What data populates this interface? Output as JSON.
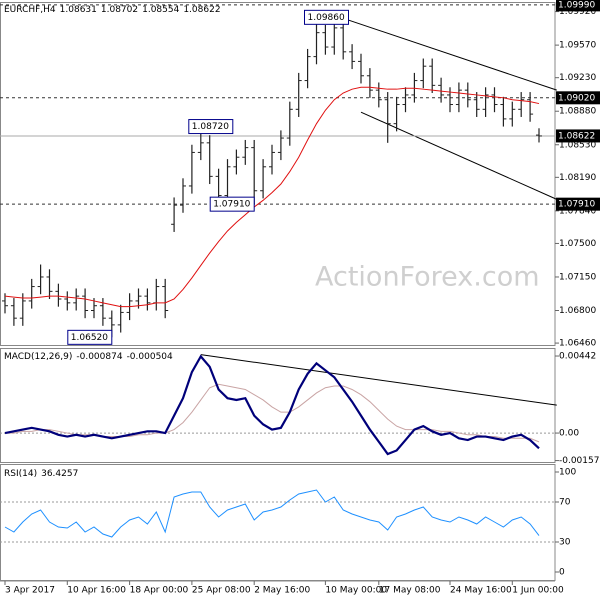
{
  "chart_data": [
    {
      "type": "ohlc",
      "title": "EURCHF,H4",
      "categories": [
        "3 Apr 2017",
        null,
        null,
        null,
        null,
        null,
        null,
        "10 Apr 16:00",
        null,
        null,
        null,
        null,
        null,
        null,
        "18 Apr 00:00",
        null,
        null,
        null,
        null,
        null,
        null,
        "25 Apr 08:00",
        null,
        null,
        null,
        null,
        null,
        null,
        "2 May 16:00",
        null,
        null,
        null,
        null,
        null,
        null,
        null,
        "10 May 00:00",
        null,
        null,
        null,
        null,
        null,
        "17 May 08:00",
        null,
        null,
        null,
        null,
        null,
        null,
        null,
        "24 May 16:00",
        null,
        null,
        null,
        null,
        null,
        null,
        "1 Jun 00:00",
        null,
        null,
        null
      ],
      "open": [
        1.069,
        1.0685,
        1.0672,
        1.069,
        1.0705,
        1.0715,
        1.07,
        1.0692,
        1.0688,
        1.0695,
        1.068,
        1.0685,
        1.0672,
        1.0665,
        1.0678,
        1.069,
        1.0695,
        1.0688,
        1.0705,
        1.077,
        1.079,
        1.081,
        1.0845,
        1.0855,
        1.082,
        1.08,
        1.083,
        1.084,
        1.085,
        1.0805,
        1.083,
        1.0845,
        1.086,
        1.089,
        1.092,
        1.0945,
        1.097,
        1.0955,
        1.0975,
        1.095,
        1.094,
        1.0925,
        1.091,
        1.09,
        1.0875,
        1.0895,
        1.0905,
        1.092,
        1.0935,
        1.0915,
        1.0905,
        1.0895,
        1.091,
        1.09,
        1.089,
        1.0905,
        1.0895,
        1.088,
        1.089,
        1.09,
        1.08631
      ],
      "high": [
        1.0698,
        1.0693,
        1.0698,
        1.0713,
        1.0728,
        1.0723,
        1.0708,
        1.07,
        1.0703,
        1.0703,
        1.0693,
        1.0693,
        1.068,
        1.0686,
        1.0698,
        1.0703,
        1.0703,
        1.0713,
        1.0713,
        1.0798,
        1.0818,
        1.0853,
        1.0872,
        1.0863,
        1.0828,
        1.0838,
        1.0848,
        1.0858,
        1.0858,
        1.0838,
        1.0853,
        1.0868,
        1.0898,
        1.0928,
        1.0953,
        1.0986,
        1.0978,
        1.0983,
        1.0983,
        1.0958,
        1.0948,
        1.0933,
        1.0918,
        1.0908,
        1.0903,
        1.0913,
        1.0928,
        1.0943,
        1.0943,
        1.0923,
        1.0913,
        1.0918,
        1.0918,
        1.0908,
        1.0913,
        1.0913,
        1.0903,
        1.0898,
        1.0908,
        1.0908,
        1.08702
      ],
      "low": [
        1.0677,
        1.0664,
        1.0664,
        1.0682,
        1.0697,
        1.0692,
        1.0684,
        1.068,
        1.068,
        1.0672,
        1.0672,
        1.0664,
        1.0652,
        1.0657,
        1.067,
        1.0682,
        1.068,
        1.068,
        1.0672,
        1.0762,
        1.0782,
        1.0802,
        1.0837,
        1.0812,
        1.0792,
        1.0792,
        1.0822,
        1.0832,
        1.0791,
        1.0797,
        1.0822,
        1.0837,
        1.0852,
        1.0882,
        1.0912,
        1.0937,
        1.0947,
        1.0947,
        1.0942,
        1.0932,
        1.0917,
        1.0902,
        1.0892,
        1.0855,
        1.0867,
        1.0887,
        1.0897,
        1.0912,
        1.0907,
        1.0897,
        1.0887,
        1.0887,
        1.0892,
        1.0882,
        1.0882,
        1.0887,
        1.0872,
        1.0872,
        1.0882,
        1.0877,
        1.08554
      ],
      "close": [
        1.0685,
        1.0672,
        1.069,
        1.0705,
        1.0715,
        1.07,
        1.0692,
        1.0688,
        1.0695,
        1.068,
        1.0685,
        1.0672,
        1.0665,
        1.0678,
        1.069,
        1.0695,
        1.0688,
        1.0705,
        1.068,
        1.079,
        1.081,
        1.0845,
        1.0855,
        1.082,
        1.08,
        1.083,
        1.084,
        1.085,
        1.0805,
        1.083,
        1.0845,
        1.086,
        1.089,
        1.092,
        1.0945,
        1.097,
        1.0955,
        1.0975,
        1.095,
        1.094,
        1.0925,
        1.091,
        1.09,
        1.0875,
        1.0895,
        1.0905,
        1.092,
        1.0935,
        1.0915,
        1.0905,
        1.0895,
        1.091,
        1.09,
        1.089,
        1.0905,
        1.0895,
        1.088,
        1.089,
        1.09,
        1.0885,
        1.08622
      ],
      "color": "#222222",
      "moving_average": {
        "color": "#e01010",
        "values": [
          1.0695,
          1.0694,
          1.0693,
          1.0693,
          1.0694,
          1.0695,
          1.0695,
          1.0694,
          1.0693,
          1.0692,
          1.069,
          1.0688,
          1.0686,
          1.0684,
          1.0684,
          1.0685,
          1.0686,
          1.0688,
          1.0688,
          1.0692,
          1.0702,
          1.0714,
          1.0727,
          1.074,
          1.0752,
          1.0763,
          1.0772,
          1.078,
          1.0788,
          1.0795,
          1.0803,
          1.0812,
          1.0825,
          1.084,
          1.0858,
          1.0875,
          1.0889,
          1.09,
          1.0907,
          1.0911,
          1.0913,
          1.0913,
          1.0912,
          1.0911,
          1.0911,
          1.0912,
          1.0912,
          1.0911,
          1.091,
          1.0909,
          1.0908,
          1.0907,
          1.0906,
          1.0905,
          1.0904,
          1.0903,
          1.0902,
          1.09,
          1.0899,
          1.0898,
          1.0896
        ]
      },
      "ylim": [
        1.0644,
        1.1002
      ],
      "yticks": [
        {
          "value": 1.0992,
          "label": "1.09920"
        },
        {
          "value": 1.0957,
          "label": "1.09570"
        },
        {
          "value": 1.0923,
          "label": "1.09230"
        },
        {
          "value": 1.0888,
          "label": "1.08880"
        },
        {
          "value": 1.0853,
          "label": "1.08530"
        },
        {
          "value": 1.0819,
          "label": "1.08190"
        },
        {
          "value": 1.0784,
          "label": "1.07840"
        },
        {
          "value": 1.075,
          "label": "1.07500"
        },
        {
          "value": 1.0715,
          "label": "1.07150"
        },
        {
          "value": 1.068,
          "label": "1.06800"
        },
        {
          "value": 1.0646,
          "label": "1.06460"
        }
      ],
      "levels": [
        {
          "value": 1.0999,
          "label": "1.09990"
        },
        {
          "value": 1.0902,
          "label": "1.09020"
        },
        {
          "value": 1.0791,
          "label": "1.07910"
        }
      ],
      "annotations": [
        {
          "value": 1.0986,
          "label": "1.09860"
        },
        {
          "value": 1.0872,
          "label": "1.08720"
        },
        {
          "value": 1.0791,
          "label": "1.07910"
        },
        {
          "value": 1.0652,
          "label": "1.06520"
        }
      ],
      "trendlines": [
        {
          "x": [
            38,
            62
          ],
          "y": [
            1.0985,
            1.091
          ]
        },
        {
          "x": [
            40,
            62
          ],
          "y": [
            1.0887,
            1.0796
          ]
        }
      ],
      "watermark": "ActionForex.com"
    },
    {
      "type": "macd",
      "title": "MACD(12,26,9)",
      "series": [
        {
          "color": "#00007a",
          "values": [
            0.0,
            0.0001,
            0.0002,
            0.0003,
            0.0002,
            0.0001,
            -0.0001,
            -0.0002,
            -0.0001,
            -0.0002,
            -0.0001,
            -0.0002,
            -0.0003,
            -0.0002,
            -0.0001,
            0.0,
            0.0001,
            0.0001,
            0.0,
            0.001,
            0.002,
            0.0035,
            0.0044,
            0.0038,
            0.0025,
            0.002,
            0.0019,
            0.002,
            0.001,
            0.0005,
            0.0002,
            0.0003,
            0.0012,
            0.0025,
            0.0034,
            0.004,
            0.0036,
            0.0032,
            0.0025,
            0.0018,
            0.001,
            0.0002,
            -0.0005,
            -0.0012,
            -0.001,
            -0.0004,
            0.0002,
            0.0004,
            0.0001,
            -0.0001,
            0.0,
            -0.0003,
            -0.0004,
            -0.0002,
            -0.0002,
            -0.0003,
            -0.0004,
            -0.0002,
            -0.0001,
            -0.0004,
            -0.000874
          ]
        },
        {
          "color": "#c9a4a4",
          "values": [
            0.0,
            0.0,
            0.0001,
            0.0001,
            0.0002,
            0.0002,
            0.0001,
            0.0,
            -0.0001,
            -0.0001,
            -0.0001,
            -0.0002,
            -0.0002,
            -0.0002,
            -0.0002,
            -0.0001,
            -0.0001,
            0.0,
            0.0,
            0.0002,
            0.0006,
            0.0012,
            0.0019,
            0.0026,
            0.0028,
            0.0027,
            0.0026,
            0.0025,
            0.0022,
            0.0019,
            0.0015,
            0.0012,
            0.0012,
            0.0015,
            0.0019,
            0.0023,
            0.0026,
            0.0027,
            0.0027,
            0.0025,
            0.0022,
            0.0018,
            0.0013,
            0.0008,
            0.0004,
            0.0002,
            0.0002,
            0.0002,
            0.0002,
            0.0001,
            0.0001,
            0.0,
            -0.0001,
            -0.0001,
            -0.0002,
            -0.0002,
            -0.0003,
            -0.0003,
            -0.0003,
            -0.0003,
            -0.000504
          ]
        }
      ],
      "ylim": [
        -0.00166,
        0.00488
      ],
      "yticks": [
        0.00442,
        {
          "value": 0,
          "label": "0.00"
        },
        -0.001578
      ],
      "levels": [
        0
      ],
      "trendlines": [
        {
          "x": [
            22,
            62
          ],
          "y": [
            0.0045,
            0.0016
          ]
        }
      ]
    },
    {
      "type": "rsi",
      "title": "RSI(14)",
      "series": [
        {
          "color": "#1e90ff",
          "values": [
            45,
            40,
            50,
            58,
            62,
            50,
            45,
            44,
            50,
            40,
            45,
            38,
            35,
            45,
            52,
            55,
            48,
            60,
            40,
            75,
            78,
            80,
            80,
            65,
            55,
            62,
            65,
            68,
            52,
            60,
            62,
            65,
            72,
            78,
            80,
            82,
            70,
            75,
            62,
            58,
            55,
            52,
            50,
            42,
            55,
            58,
            62,
            65,
            55,
            52,
            50,
            55,
            52,
            48,
            55,
            50,
            45,
            52,
            55,
            48,
            36.4257
          ]
        }
      ],
      "ylim": [
        -8,
        108
      ],
      "yticks": [
        100,
        70,
        30,
        0
      ],
      "levels": [
        70,
        30
      ]
    }
  ]
}
